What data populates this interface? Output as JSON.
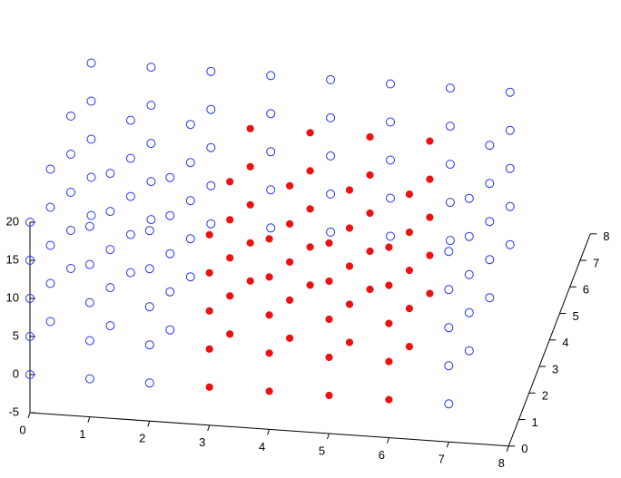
{
  "chart_data": {
    "type": "scatter3d",
    "xlim": [
      0,
      8
    ],
    "ylim": [
      0,
      8
    ],
    "zlim": [
      -5,
      20
    ],
    "xticks": [
      0,
      1,
      2,
      3,
      4,
      5,
      6,
      7,
      8
    ],
    "yticks": [
      0,
      1,
      2,
      3,
      4,
      5,
      6,
      7,
      8
    ],
    "zticks": [
      -5,
      0,
      5,
      10,
      15,
      20
    ],
    "series": [
      {
        "color": "#2233ee",
        "marker": "open",
        "x": [
          0,
          0,
          0,
          0,
          0,
          0,
          0,
          0,
          0,
          0,
          0,
          0,
          0,
          0,
          0,
          0,
          0,
          0,
          0,
          0,
          1,
          1,
          1,
          1,
          1,
          1,
          1,
          1,
          1,
          1,
          1,
          1,
          1,
          1,
          1,
          1,
          1,
          1,
          1,
          1,
          2,
          2,
          2,
          2,
          2,
          2,
          2,
          2,
          2,
          2,
          2,
          2,
          2,
          2,
          2,
          2,
          2,
          2,
          2,
          2,
          7,
          7,
          7,
          7,
          7,
          7,
          7,
          7,
          7,
          7,
          7,
          7,
          7,
          7,
          7,
          7,
          7,
          7,
          7,
          7,
          3,
          3,
          3,
          3,
          3,
          4,
          4,
          4,
          4,
          4,
          5,
          5,
          5,
          5,
          5,
          6,
          6,
          6,
          6,
          6
        ],
        "y": [
          0,
          0,
          0,
          0,
          0,
          2,
          2,
          2,
          2,
          2,
          4,
          4,
          4,
          4,
          4,
          6,
          6,
          6,
          6,
          6,
          0,
          0,
          0,
          0,
          0,
          2,
          2,
          2,
          2,
          2,
          4,
          4,
          4,
          4,
          4,
          6,
          6,
          6,
          6,
          6,
          0,
          0,
          0,
          0,
          0,
          2,
          2,
          2,
          2,
          2,
          4,
          4,
          4,
          4,
          4,
          6,
          6,
          6,
          6,
          6,
          0,
          0,
          0,
          0,
          0,
          2,
          2,
          2,
          2,
          2,
          4,
          4,
          4,
          4,
          4,
          6,
          6,
          6,
          6,
          6,
          6,
          6,
          6,
          6,
          6,
          6,
          6,
          6,
          6,
          6,
          6,
          6,
          6,
          6,
          6,
          6,
          6,
          6,
          6,
          6
        ],
        "z": [
          0,
          5,
          10,
          15,
          20,
          0,
          5,
          10,
          15,
          20,
          0,
          5,
          10,
          15,
          20,
          0,
          5,
          10,
          15,
          20,
          0,
          5,
          10,
          15,
          20,
          0,
          5,
          10,
          15,
          20,
          0,
          5,
          10,
          15,
          20,
          0,
          5,
          10,
          15,
          20,
          0,
          5,
          10,
          15,
          20,
          0,
          5,
          10,
          15,
          20,
          0,
          5,
          10,
          15,
          20,
          0,
          5,
          10,
          15,
          20,
          0,
          5,
          10,
          15,
          20,
          0,
          5,
          10,
          15,
          20,
          0,
          5,
          10,
          15,
          20,
          0,
          5,
          10,
          15,
          20,
          0,
          5,
          10,
          15,
          20,
          0,
          5,
          10,
          15,
          20,
          0,
          5,
          10,
          15,
          20,
          0,
          5,
          10,
          15,
          20
        ]
      },
      {
        "color": "#ee1111",
        "marker": "filled",
        "x": [
          3,
          3,
          3,
          3,
          3,
          3,
          3,
          3,
          3,
          3,
          3,
          3,
          3,
          3,
          3,
          4,
          4,
          4,
          4,
          4,
          4,
          4,
          4,
          4,
          4,
          4,
          4,
          4,
          4,
          4,
          5,
          5,
          5,
          5,
          5,
          5,
          5,
          5,
          5,
          5,
          5,
          5,
          5,
          5,
          5,
          6,
          6,
          6,
          6,
          6,
          6,
          6,
          6,
          6,
          6,
          6,
          6,
          6,
          6,
          6
        ],
        "y": [
          0,
          0,
          0,
          0,
          0,
          2,
          2,
          2,
          2,
          2,
          4,
          4,
          4,
          4,
          4,
          0,
          0,
          0,
          0,
          0,
          2,
          2,
          2,
          2,
          2,
          4,
          4,
          4,
          4,
          4,
          0,
          0,
          0,
          0,
          0,
          2,
          2,
          2,
          2,
          2,
          4,
          4,
          4,
          4,
          4,
          0,
          0,
          0,
          0,
          0,
          2,
          2,
          2,
          2,
          2,
          4,
          4,
          4,
          4,
          4
        ],
        "z": [
          0,
          5,
          10,
          15,
          20,
          0,
          5,
          10,
          15,
          20,
          0,
          5,
          10,
          15,
          20,
          0,
          5,
          10,
          15,
          20,
          0,
          5,
          10,
          15,
          20,
          0,
          5,
          10,
          15,
          20,
          0,
          5,
          10,
          15,
          20,
          0,
          5,
          10,
          15,
          20,
          0,
          5,
          10,
          15,
          20,
          0,
          5,
          10,
          15,
          20,
          0,
          5,
          10,
          15,
          20,
          0,
          5,
          10,
          15,
          20
        ]
      }
    ]
  }
}
